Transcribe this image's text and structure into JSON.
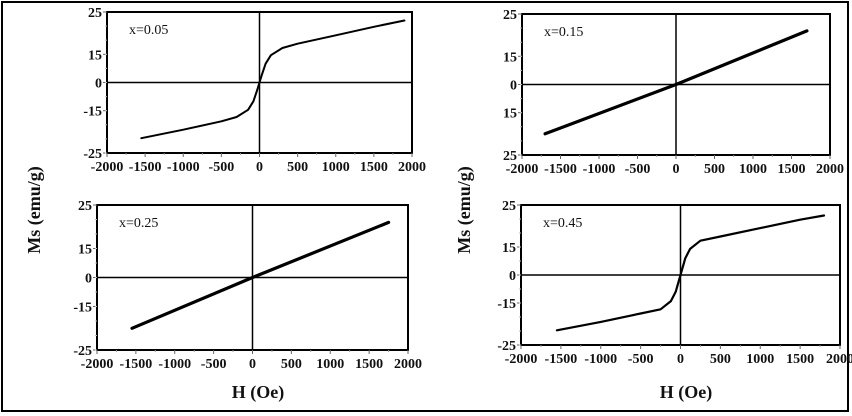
{
  "figure": {
    "ylabel_left": "Ms (emu/g)",
    "ylabel_right": "Ms (emu/g)",
    "xlabel_left": "H (Oe)",
    "xlabel_right": "H (Oe)"
  },
  "chart_data": [
    {
      "type": "line",
      "title": "x=0.05",
      "xlabel": "H (Oe)",
      "ylabel": "Ms (emu/g)",
      "xlim": [
        -2000,
        2000
      ],
      "ylim": [
        -25,
        25
      ],
      "x_ticks": [
        "-2000",
        "-1500",
        "-1000",
        "-500",
        "0",
        "500",
        "1000",
        "1500",
        "2000"
      ],
      "y_ticks": [
        "25",
        "15",
        "0",
        "-15",
        "-25"
      ],
      "series": [
        {
          "name": "x=0.05",
          "x": [
            -1550,
            -1000,
            -500,
            -300,
            -150,
            -80,
            -30,
            0,
            30,
            80,
            150,
            300,
            500,
            1000,
            1500,
            1900
          ],
          "y": [
            -21.5,
            -19.5,
            -17.5,
            -16.5,
            -14.5,
            -10,
            -4,
            0,
            4,
            10,
            14.5,
            16.5,
            17.5,
            19.5,
            21.5,
            23
          ]
        }
      ]
    },
    {
      "type": "line",
      "title": "x=0.15",
      "xlabel": "H (Oe)",
      "ylabel": "Ms (emu/g)",
      "xlim": [
        -2000,
        2000
      ],
      "ylim": [
        -25,
        25
      ],
      "x_ticks": [
        "-2000",
        "-1500",
        "-1000",
        "-500",
        "0",
        "500",
        "1000",
        "1500",
        "2000"
      ],
      "y_ticks": [
        "25",
        "15",
        "0",
        "15",
        "25"
      ],
      "series": [
        {
          "name": "x=0.15",
          "x": [
            -1700,
            0,
            1700
          ],
          "y": [
            -20,
            0,
            21
          ]
        }
      ]
    },
    {
      "type": "line",
      "title": "x=0.25",
      "xlabel": "H (Oe)",
      "ylabel": "Ms (emu/g)",
      "xlim": [
        -2000,
        2000
      ],
      "ylim": [
        -25,
        25
      ],
      "x_ticks": [
        "-2000",
        "-1500",
        "-1000",
        "-500",
        "0",
        "500",
        "1000",
        "1500",
        "2000"
      ],
      "y_ticks": [
        "25",
        "15",
        "0",
        "-15",
        "-25"
      ],
      "series": [
        {
          "name": "x=0.25",
          "x": [
            -1550,
            0,
            1750
          ],
          "y": [
            -20,
            0,
            21
          ]
        }
      ]
    },
    {
      "type": "line",
      "title": "x=0.45",
      "xlabel": "H (Oe)",
      "ylabel": "Ms (emu/g)",
      "xlim": [
        -2000,
        2000
      ],
      "ylim": [
        -25,
        25
      ],
      "x_ticks": [
        "-2000",
        "-1500",
        "-1000",
        "-500",
        "0",
        "500",
        "1000",
        "1500",
        "2000"
      ],
      "y_ticks": [
        "25",
        "15",
        "0",
        "-15",
        "-25"
      ],
      "series": [
        {
          "name": "x=0.45",
          "x": [
            -1550,
            -1000,
            -500,
            -250,
            -120,
            -60,
            -20,
            0,
            20,
            60,
            120,
            250,
            500,
            1000,
            1500,
            1800
          ],
          "y": [
            -21.5,
            -19.5,
            -17.5,
            -16.5,
            -14,
            -9,
            -3,
            0,
            3,
            9,
            14,
            16.5,
            17.5,
            19.5,
            21.5,
            22.5
          ]
        }
      ]
    }
  ]
}
